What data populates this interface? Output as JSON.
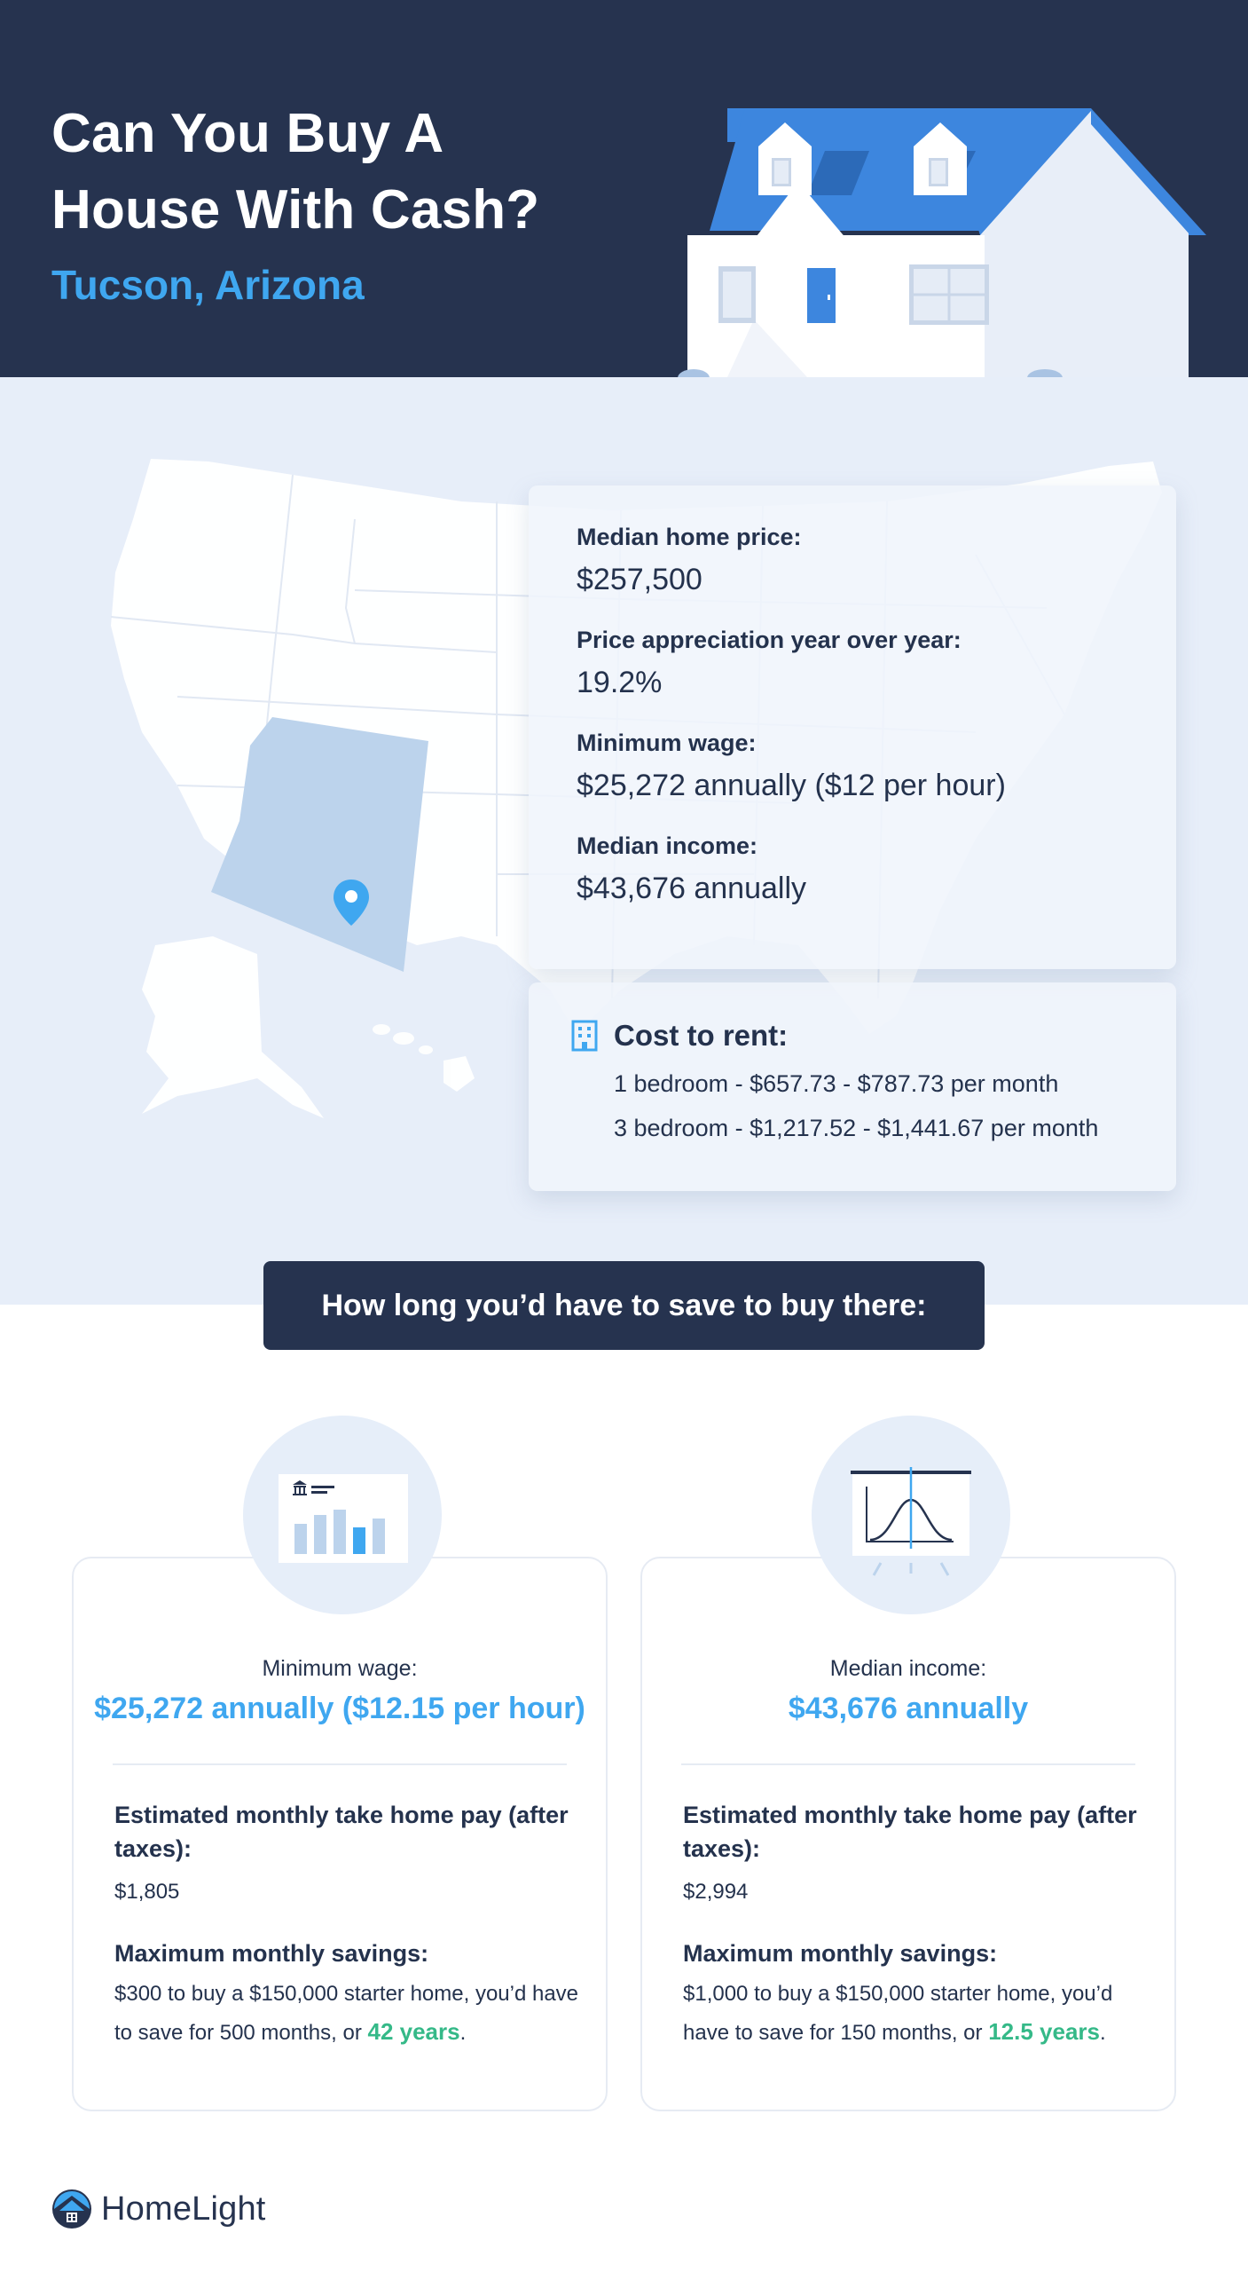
{
  "header": {
    "title_line1": "Can You Buy A",
    "title_line2": "House With Cash?",
    "subtitle": "Tucson, Arizona"
  },
  "stats": [
    {
      "label": "Median home price:",
      "value": "$257,500"
    },
    {
      "label": "Price appreciation year over year:",
      "value": "19.2%"
    },
    {
      "label": "Minimum wage:",
      "value": "$25,272 annually ($12 per hour)"
    },
    {
      "label": "Median income:",
      "value": "$43,676 annually"
    }
  ],
  "rent": {
    "title": "Cost to rent:",
    "lines": [
      "1 bedroom - $657.73 - $787.73 per month",
      "3 bedroom - $1,217.52 - $1,441.67 per month"
    ]
  },
  "banner": {
    "text": "How long you’d have to save to buy there:"
  },
  "cards": [
    {
      "head_label": "Minimum wage:",
      "head_value": "$25,272 annually ($12.15 per hour)",
      "takehome_label": "Estimated monthly take home pay (after taxes):",
      "takehome_value": "$1,805",
      "savings_label": "Maximum monthly savings:",
      "savings_text": "$300 to buy a $150,000 starter home, you’d have to save for 500 months, or",
      "savings_highlight": "42 years",
      "savings_end": "."
    },
    {
      "head_label": "Median income:",
      "head_value": "$43,676 annually",
      "takehome_label": "Estimated monthly take home pay (after taxes):",
      "takehome_value": "$2,994",
      "savings_label": "Maximum monthly savings:",
      "savings_text": "$1,000 to buy a $150,000 starter home, you’d have to save for 150 months, or",
      "savings_highlight": "12.5 years",
      "savings_end": "."
    }
  ],
  "footer": {
    "brand": "HomeLight"
  },
  "colors": {
    "navy": "#26334f",
    "accent_blue": "#3fa7f0",
    "highlight_green": "#35b988",
    "map_bg": "#e7eef9",
    "arizona": "#bcd3ec"
  },
  "icons": {
    "house": "house-illustration",
    "map_pin": "map-pin-icon",
    "building": "building-icon",
    "bank_chart": "bank-chart-icon",
    "presentation_chart": "presentation-board-icon",
    "logo": "homelight-logo-icon"
  }
}
